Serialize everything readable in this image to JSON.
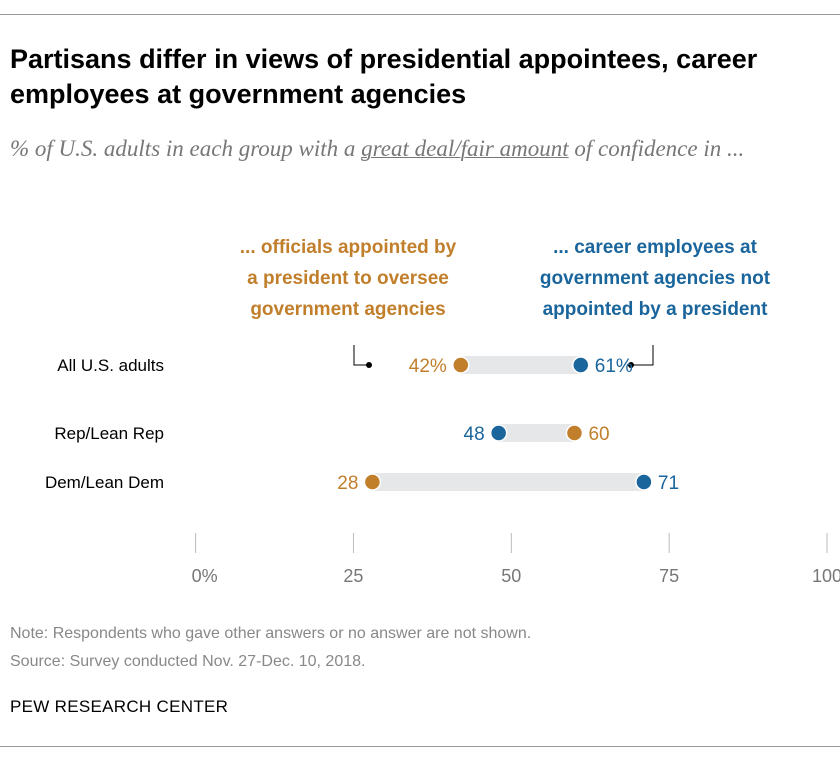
{
  "title": "Partisans differ in views of presidential appointees, career employees at government agencies",
  "subtitle": {
    "before": "% of U.S. adults in each group with a ",
    "underlined": "great deal/fair amount",
    "after": " of confidence in ..."
  },
  "chart_data": {
    "type": "dot-plot",
    "categories": [
      "All U.S. adults",
      "Rep/Lean Rep",
      "Dem/Lean Dem"
    ],
    "series": [
      {
        "name": "... officials appointed by a president to oversee government agencies",
        "color": "#C17F2C",
        "values": [
          42,
          60,
          28
        ],
        "labels": [
          "42%",
          "60",
          "28"
        ]
      },
      {
        "name": "... career employees at government agencies not appointed by a president",
        "color": "#1A659C",
        "values": [
          61,
          48,
          71
        ],
        "labels": [
          "61%",
          "48",
          "71"
        ]
      }
    ],
    "xlim": [
      0,
      100
    ],
    "xticks": [
      0,
      25,
      50,
      75,
      100
    ],
    "xtick_labels": [
      "0%",
      "25",
      "50",
      "75",
      "100"
    ],
    "connector_color": "#E6E7E8",
    "grid": false
  },
  "legend": {
    "orange_lines": [
      "... officials appointed by",
      "a president to oversee",
      "government agencies"
    ],
    "blue_lines": [
      "... career employees at",
      "government agencies not",
      "appointed by a president"
    ]
  },
  "note": "Note: Respondents who gave other answers or no answer are not shown.",
  "source": "Source: Survey conducted Nov. 27-Dec. 10, 2018.",
  "brand": "PEW RESEARCH CENTER"
}
